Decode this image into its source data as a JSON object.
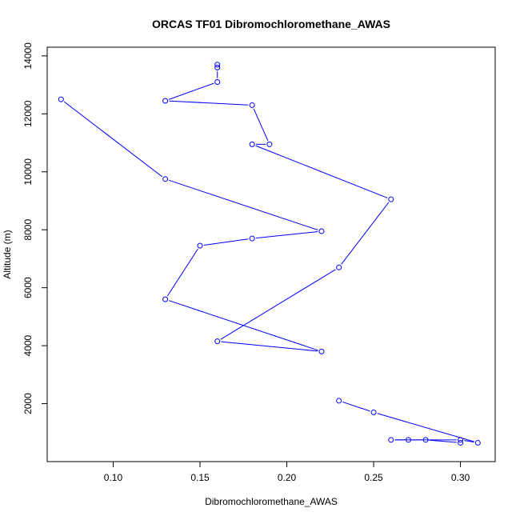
{
  "chart_data": {
    "type": "line",
    "title": "ORCAS TF01 Dibromochloromethane_AWAS",
    "xlabel": "Dibromochloromethane_AWAS",
    "ylabel": "Altitude (m)",
    "xlim": [
      0.062,
      0.32
    ],
    "ylim": [
      0,
      14300
    ],
    "x_ticks": [
      0.1,
      0.15,
      0.2,
      0.25,
      0.3
    ],
    "x_tick_labels": [
      "0.10",
      "0.15",
      "0.20",
      "0.25",
      "0.30"
    ],
    "y_ticks": [
      2000,
      4000,
      6000,
      8000,
      10000,
      12000,
      14000
    ],
    "y_tick_labels": [
      "2000",
      "4000",
      "6000",
      "8000",
      "10000",
      "12000",
      "14000"
    ],
    "grid": false,
    "series": [
      {
        "color": "#0000ff",
        "marker": "open-circle",
        "points": [
          {
            "x": 0.16,
            "y": 13700
          },
          {
            "x": 0.16,
            "y": 13600
          },
          {
            "x": 0.16,
            "y": 13100
          },
          {
            "x": 0.13,
            "y": 12450
          },
          {
            "x": 0.18,
            "y": 12300
          },
          {
            "x": 0.19,
            "y": 10950
          },
          {
            "x": 0.18,
            "y": 10950
          },
          {
            "x": 0.26,
            "y": 9050
          },
          {
            "x": 0.23,
            "y": 6700
          },
          {
            "x": 0.16,
            "y": 4150
          },
          {
            "x": 0.22,
            "y": 3800
          },
          {
            "x": 0.13,
            "y": 5600
          },
          {
            "x": 0.15,
            "y": 7450
          },
          {
            "x": 0.18,
            "y": 7700
          },
          {
            "x": 0.22,
            "y": 7950
          },
          {
            "x": 0.13,
            "y": 9750
          },
          {
            "x": 0.07,
            "y": 12500
          }
        ]
      },
      {
        "color": "#0000ff",
        "marker": "open-circle",
        "points": [
          {
            "x": 0.23,
            "y": 2100
          },
          {
            "x": 0.25,
            "y": 1700
          },
          {
            "x": 0.31,
            "y": 650
          },
          {
            "x": 0.3,
            "y": 750
          },
          {
            "x": 0.26,
            "y": 750
          },
          {
            "x": 0.27,
            "y": 750
          },
          {
            "x": 0.28,
            "y": 750
          },
          {
            "x": 0.3,
            "y": 650
          }
        ]
      }
    ]
  }
}
